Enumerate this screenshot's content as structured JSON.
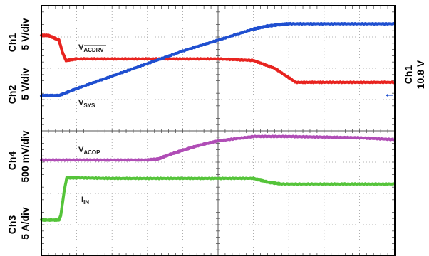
{
  "chart_data": {
    "type": "line",
    "title": "",
    "xlabel": "",
    "ylabel": "",
    "grid": true,
    "divisions": {
      "x": 10,
      "y": 8
    },
    "xlim": [
      0,
      10
    ],
    "ylim": [
      0,
      8
    ],
    "side_labels": {
      "ch1_name": "Ch1",
      "ch1_scale": "5 V/div",
      "ch2_name": "Ch2",
      "ch2_scale": "5 V/div",
      "ch4_name": "Ch4",
      "ch4_scale": "500 mV/div",
      "ch3_name": "Ch3",
      "ch3_scale": "5 A/div",
      "trigger_name": "Ch1",
      "trigger_level": "10.8 V"
    },
    "series": [
      {
        "key": "vacdrv",
        "label_main": "V",
        "label_sub": "ACDRV",
        "overline": true,
        "color": "#e8231f",
        "x": [
          0,
          0.2,
          0.5,
          0.6,
          0.7,
          1.0,
          2.0,
          3.0,
          4.0,
          5.0,
          6.0,
          6.6,
          7.2,
          8.0,
          9.0,
          10.0
        ],
        "y": [
          7.05,
          7.05,
          6.9,
          6.5,
          6.25,
          6.3,
          6.3,
          6.3,
          6.3,
          6.3,
          6.25,
          6.0,
          5.55,
          5.55,
          5.55,
          5.55
        ]
      },
      {
        "key": "vsys",
        "label_main": "V",
        "label_sub": "SYS",
        "overline": false,
        "color": "#1f4fd0",
        "x": [
          0,
          0.5,
          1.0,
          2.0,
          3.0,
          4.0,
          5.0,
          6.0,
          6.4,
          6.8,
          7.0,
          8.0,
          9.0,
          10.0
        ],
        "y": [
          5.13,
          5.13,
          5.35,
          5.75,
          6.15,
          6.55,
          6.9,
          7.25,
          7.35,
          7.4,
          7.42,
          7.42,
          7.42,
          7.42
        ]
      },
      {
        "key": "vacop",
        "label_main": "V",
        "label_sub": "ACOP",
        "overline": false,
        "color": "#b04db6",
        "x": [
          0,
          1.0,
          2.0,
          3.0,
          3.3,
          3.6,
          4.0,
          4.5,
          5.0,
          6.0,
          7.0,
          8.0,
          9.0,
          10.0
        ],
        "y": [
          3.07,
          3.07,
          3.07,
          3.07,
          3.1,
          3.23,
          3.38,
          3.55,
          3.68,
          3.82,
          3.82,
          3.8,
          3.78,
          3.72
        ]
      },
      {
        "key": "iin",
        "label_main": "I",
        "label_sub": "IN",
        "overline": false,
        "color": "#55c43a",
        "x": [
          0,
          0.5,
          0.55,
          0.65,
          0.72,
          1.0,
          2.0,
          3.0,
          4.0,
          5.0,
          6.0,
          6.4,
          6.8,
          8.0,
          9.0,
          10.0
        ],
        "y": [
          1.15,
          1.15,
          1.3,
          2.1,
          2.5,
          2.5,
          2.48,
          2.48,
          2.48,
          2.48,
          2.48,
          2.36,
          2.3,
          2.3,
          2.3,
          2.3
        ]
      }
    ]
  }
}
